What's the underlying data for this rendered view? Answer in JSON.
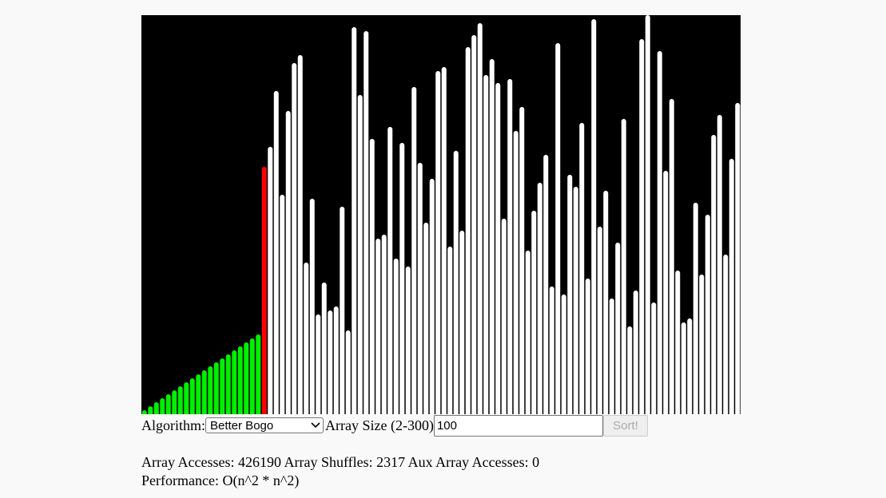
{
  "chart_data": {
    "type": "bar",
    "values": [
      1,
      2,
      3,
      4,
      5,
      6,
      7,
      8,
      9,
      10,
      11,
      12,
      13,
      14,
      15,
      16,
      17,
      18,
      19,
      20,
      62,
      67,
      81,
      55,
      76,
      88,
      90,
      38,
      54,
      25,
      33,
      26,
      27,
      52,
      21,
      97,
      80,
      96,
      69,
      44,
      45,
      72,
      39,
      68,
      37,
      82,
      63,
      48,
      59,
      86,
      87,
      42,
      66,
      46,
      92,
      95,
      98,
      85,
      89,
      83,
      49,
      84,
      71,
      77,
      41,
      51,
      58,
      65,
      32,
      93,
      30,
      60,
      57,
      73,
      34,
      99,
      47,
      56,
      29,
      43,
      74,
      22,
      31,
      94,
      100,
      28,
      91,
      61,
      79,
      36,
      23,
      24,
      53,
      35,
      50,
      70,
      75,
      40,
      64,
      78
    ],
    "colors": [
      "#00ee00",
      "#00ee00",
      "#00ee00",
      "#00ee00",
      "#00ee00",
      "#00ee00",
      "#00ee00",
      "#00ee00",
      "#00ee00",
      "#00ee00",
      "#00ee00",
      "#00ee00",
      "#00ee00",
      "#00ee00",
      "#00ee00",
      "#00ee00",
      "#00ee00",
      "#00ee00",
      "#00ee00",
      "#00ee00",
      "#ff0000",
      "#ffffff",
      "#ffffff",
      "#ffffff",
      "#ffffff",
      "#ffffff",
      "#ffffff",
      "#ffffff",
      "#ffffff",
      "#ffffff",
      "#ffffff",
      "#ffffff",
      "#ffffff",
      "#ffffff",
      "#ffffff",
      "#ffffff",
      "#ffffff",
      "#ffffff",
      "#ffffff",
      "#ffffff",
      "#ffffff",
      "#ffffff",
      "#ffffff",
      "#ffffff",
      "#ffffff",
      "#ffffff",
      "#ffffff",
      "#ffffff",
      "#ffffff",
      "#ffffff",
      "#ffffff",
      "#ffffff",
      "#ffffff",
      "#ffffff",
      "#ffffff",
      "#ffffff",
      "#ffffff",
      "#ffffff",
      "#ffffff",
      "#ffffff",
      "#ffffff",
      "#ffffff",
      "#ffffff",
      "#ffffff",
      "#ffffff",
      "#ffffff",
      "#ffffff",
      "#ffffff",
      "#ffffff",
      "#ffffff",
      "#ffffff",
      "#ffffff",
      "#ffffff",
      "#ffffff",
      "#ffffff",
      "#ffffff",
      "#ffffff",
      "#ffffff",
      "#ffffff",
      "#ffffff",
      "#ffffff",
      "#ffffff",
      "#ffffff",
      "#ffffff",
      "#ffffff",
      "#ffffff",
      "#ffffff",
      "#ffffff",
      "#ffffff",
      "#ffffff",
      "#ffffff",
      "#ffffff",
      "#ffffff",
      "#ffffff",
      "#ffffff",
      "#ffffff",
      "#ffffff",
      "#ffffff",
      "#ffffff",
      "#ffffff"
    ],
    "background": "#000000",
    "ylim": [
      0,
      100
    ]
  },
  "controls": {
    "algorithm_label": "Algorithm:",
    "algorithm": "Better Bogo",
    "size_label": "Array Size (2-300)",
    "size": 100,
    "button": "Sort!"
  },
  "stats": [
    {
      "label": "Array Accesses:",
      "value": 426190
    },
    {
      "label": "Array Shuffles:",
      "value": 2317
    },
    {
      "label": "Aux Array Accesses:",
      "value": 0
    }
  ],
  "performance": {
    "label": "Performance:",
    "value": "O(n^2 * n^2)"
  }
}
